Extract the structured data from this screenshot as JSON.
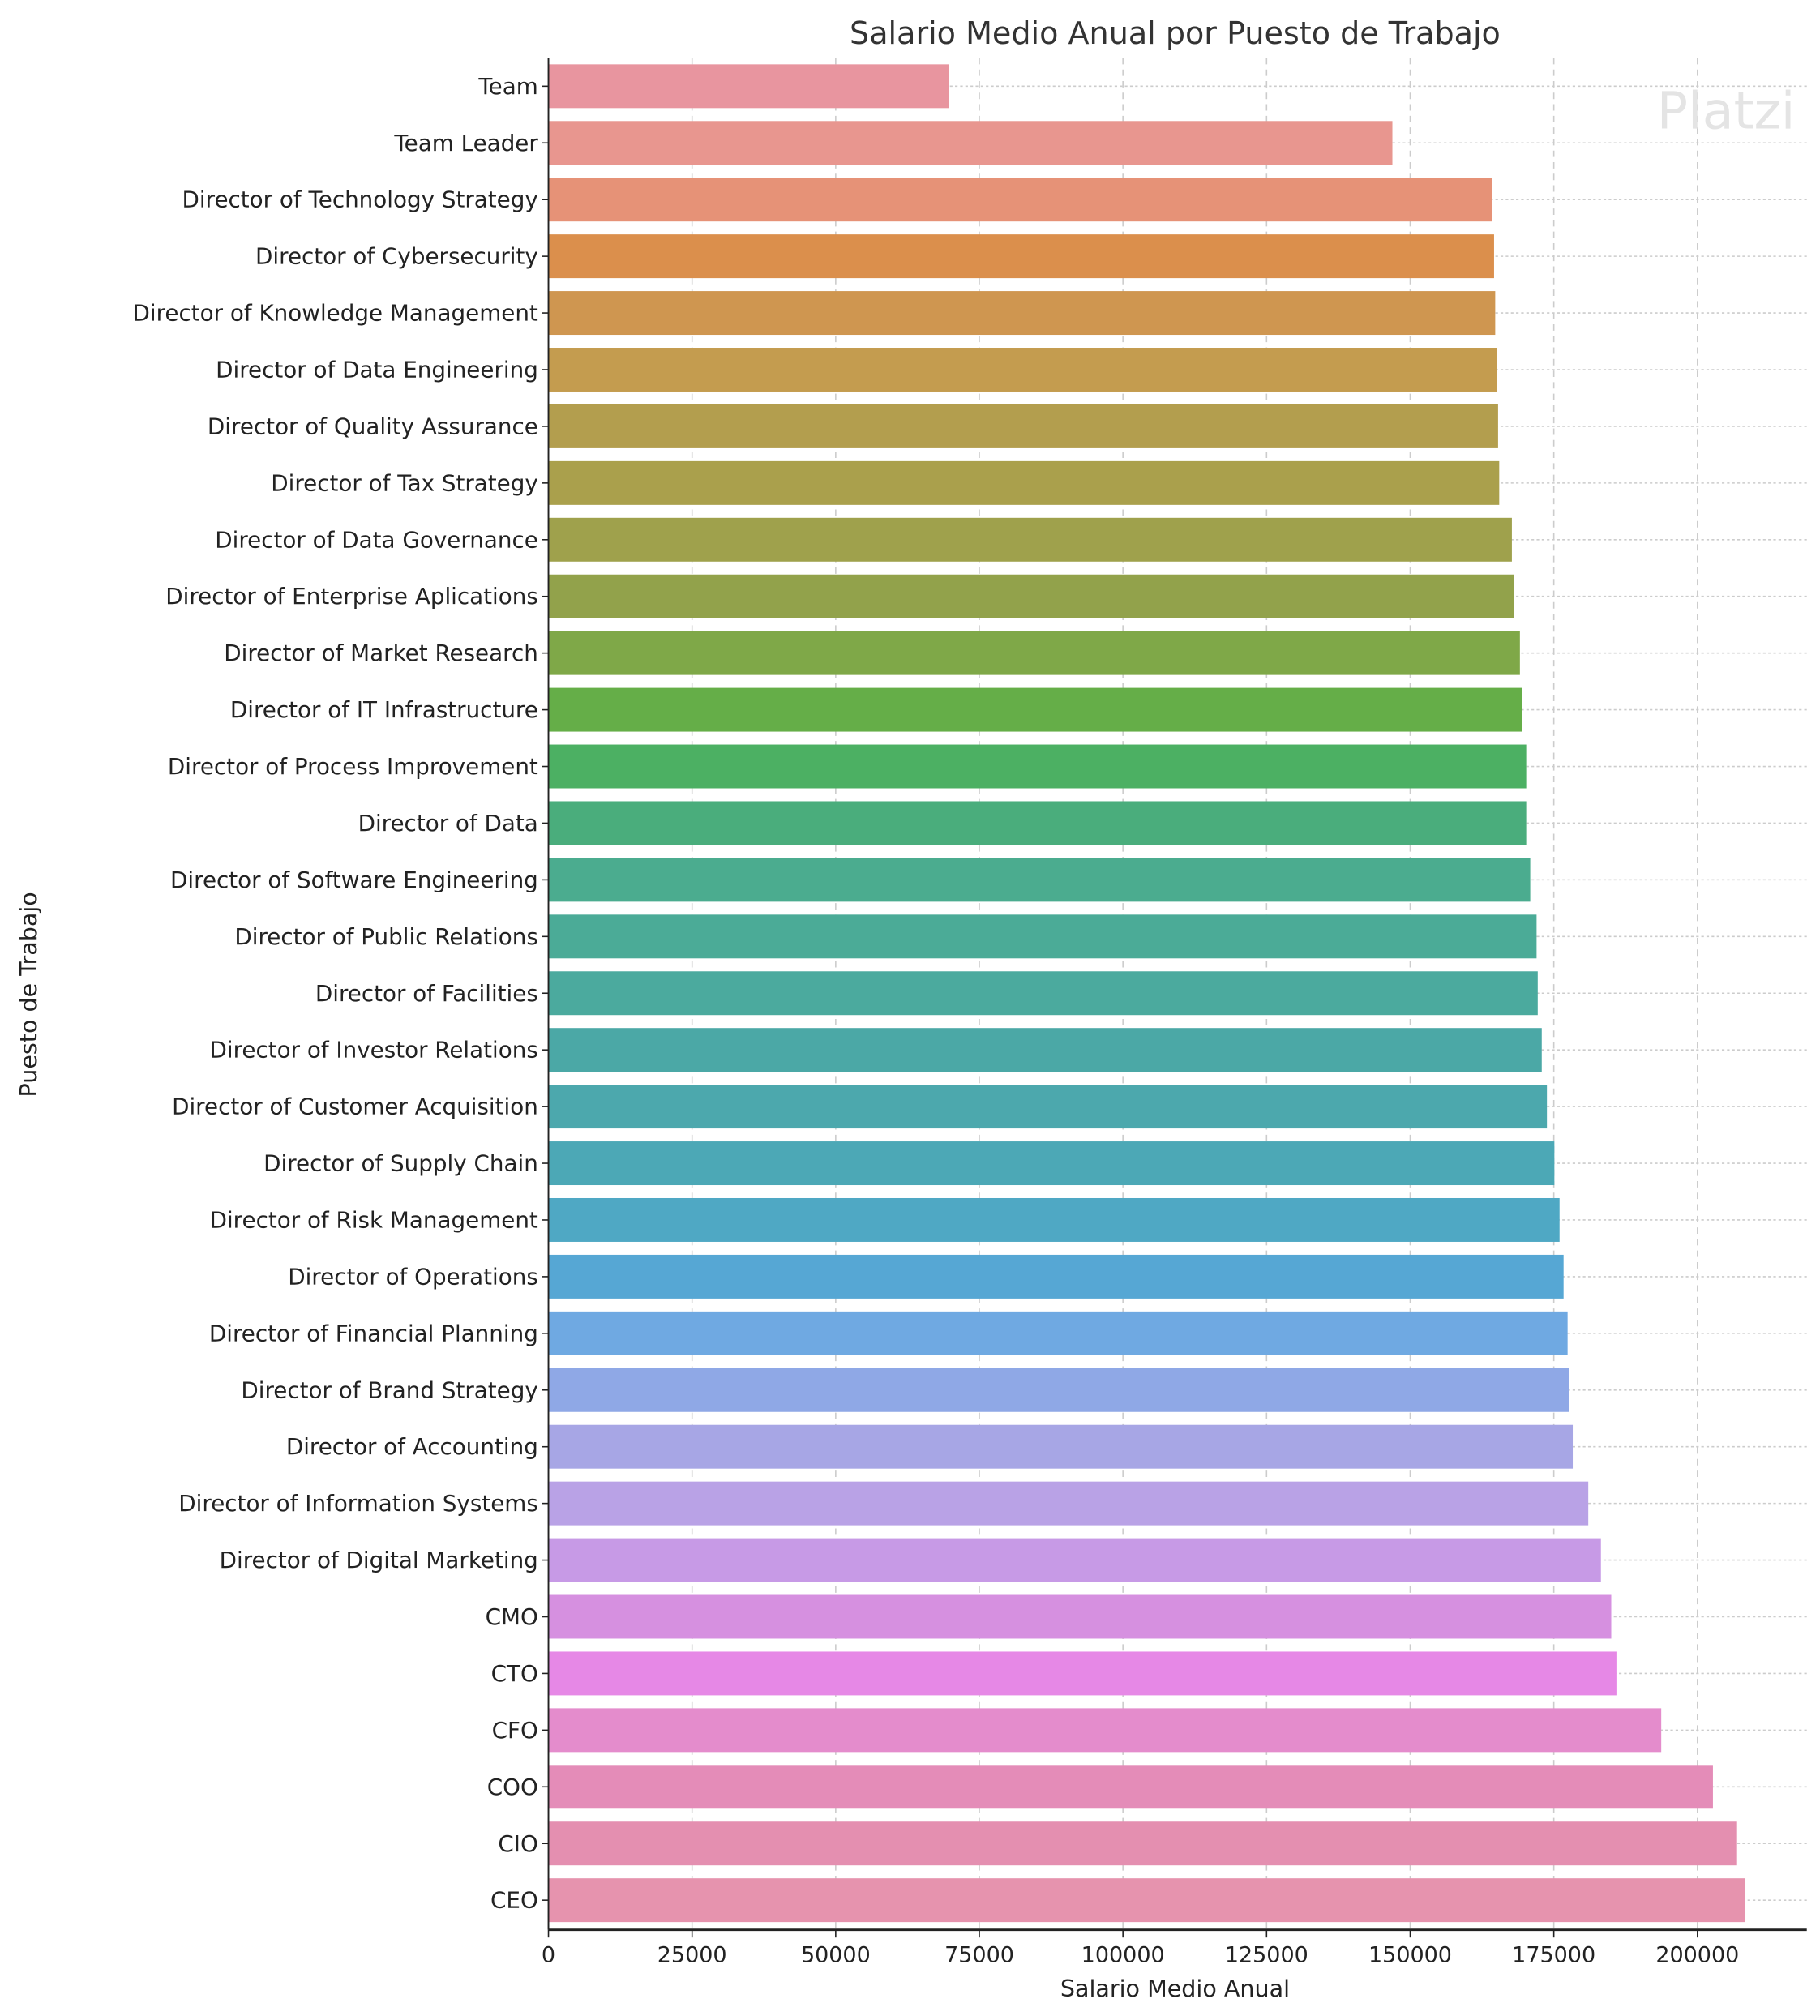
{
  "chart_data": {
    "type": "bar",
    "orientation": "horizontal",
    "title": "Salario Medio Anual por Puesto de Trabajo",
    "xlabel": "Salario Medio Anual",
    "ylabel": "Puesto de Trabajo",
    "xlim": [
      0,
      219000
    ],
    "xticks": [
      0,
      25000,
      50000,
      75000,
      100000,
      125000,
      150000,
      175000,
      200000
    ],
    "grid": true,
    "watermark": "Platzi",
    "categories": [
      "Team",
      "Team Leader",
      "Director of Technology Strategy",
      "Director of Cybersecurity",
      "Director of Knowledge Management",
      "Director of Data Engineering",
      "Director of Quality Assurance",
      "Director of Tax Strategy",
      "Director of Data Governance",
      "Director of Enterprise Aplications",
      "Director of Market Research",
      "Director of IT Infrastructure",
      "Director of Process Improvement",
      "Director of Data",
      "Director of Software Engineering",
      "Director of Public Relations",
      "Director of Facilities",
      "Director of Investor Relations",
      "Director of Customer Acquisition",
      "Director of Supply Chain",
      "Director of Risk Management",
      "Director of Operations",
      "Director of Financial Planning",
      "Director of Brand Strategy",
      "Director of Accounting",
      "Director of Information Systems",
      "Director of Digital Marketing",
      "CMO",
      "CTO",
      "CFO",
      "COO",
      "CIO",
      "CEO"
    ],
    "values": [
      69700,
      146900,
      164200,
      164600,
      164800,
      165100,
      165300,
      165500,
      167700,
      168000,
      169100,
      169500,
      170200,
      170200,
      170900,
      172000,
      172200,
      172900,
      173800,
      175100,
      176000,
      176700,
      177400,
      177600,
      178300,
      181000,
      183200,
      185000,
      185900,
      193700,
      202700,
      206900,
      208300
    ],
    "colors": [
      "#e8959f",
      "#e8968f",
      "#e69277",
      "#db8f4c",
      "#cf9650",
      "#c49c4f",
      "#b39e4e",
      "#aaa04c",
      "#9fa14c",
      "#92a24b",
      "#7fa848",
      "#65ae48",
      "#4cb063",
      "#4aad7c",
      "#4bac8f",
      "#4bab97",
      "#4baa9e",
      "#4ba8a6",
      "#4ca8ad",
      "#4ca8b6",
      "#4fa8c4",
      "#56a7d4",
      "#6fa9e2",
      "#8fa8e6",
      "#a7a6e5",
      "#b9a2e6",
      "#c79ae6",
      "#d690e0",
      "#e688e6",
      "#e48ccc",
      "#e48cb8",
      "#e48fb0",
      "#e693ae"
    ]
  }
}
